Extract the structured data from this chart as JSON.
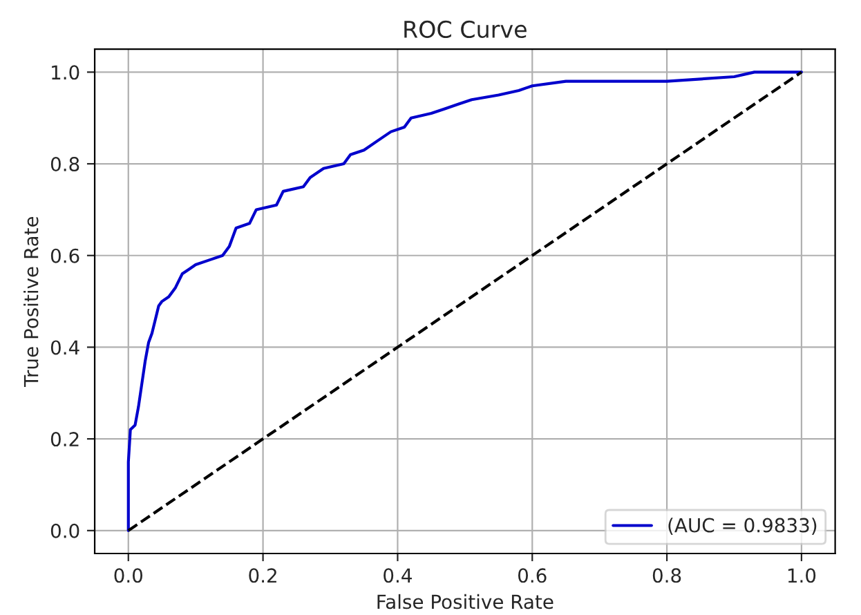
{
  "chart_data": {
    "type": "line",
    "title": "ROC Curve",
    "xlabel": "False Positive Rate",
    "ylabel": "True Positive Rate",
    "xlim": [
      -0.05,
      1.05
    ],
    "ylim": [
      -0.05,
      1.05
    ],
    "xticks": [
      {
        "value": 0,
        "label": "0.0"
      },
      0.2,
      0.4,
      0.6,
      0.8,
      {
        "value": 1,
        "label": "1.0"
      }
    ],
    "yticks": [
      {
        "value": 0,
        "label": "0.0"
      },
      0.2,
      0.4,
      0.6,
      0.8,
      {
        "value": 1,
        "label": "1.0"
      }
    ],
    "grid": true,
    "legend": "bottom right",
    "series": [
      {
        "name": "(AUC = 0.9833)",
        "color": "#0000cc",
        "line_style": "solid",
        "x": [
          0,
          0,
          0.003,
          0.01,
          0.015,
          0.02,
          0.025,
          0.03,
          0.035,
          0.04,
          0.045,
          0.05,
          0.06,
          0.07,
          0.08,
          0.09,
          0.1,
          0.12,
          0.14,
          0.15,
          0.16,
          0.18,
          0.19,
          0.22,
          0.23,
          0.26,
          0.27,
          0.29,
          0.32,
          0.33,
          0.35,
          0.37,
          0.39,
          0.41,
          0.42,
          0.45,
          0.47,
          0.49,
          0.51,
          0.55,
          0.58,
          0.6,
          0.65,
          0.7,
          0.8,
          0.9,
          0.93,
          1.0
        ],
        "values": [
          0,
          0.15,
          0.22,
          0.23,
          0.27,
          0.32,
          0.37,
          0.41,
          0.43,
          0.46,
          0.49,
          0.5,
          0.51,
          0.53,
          0.56,
          0.57,
          0.58,
          0.59,
          0.6,
          0.62,
          0.66,
          0.67,
          0.7,
          0.71,
          0.74,
          0.75,
          0.77,
          0.79,
          0.8,
          0.82,
          0.83,
          0.85,
          0.87,
          0.88,
          0.9,
          0.91,
          0.92,
          0.93,
          0.94,
          0.95,
          0.96,
          0.97,
          0.98,
          0.98,
          0.98,
          0.99,
          1.0,
          1.0
        ]
      },
      {
        "color": "#000000",
        "line_style": "dashed",
        "x": [
          0,
          1
        ],
        "values": [
          0,
          1
        ]
      }
    ]
  }
}
